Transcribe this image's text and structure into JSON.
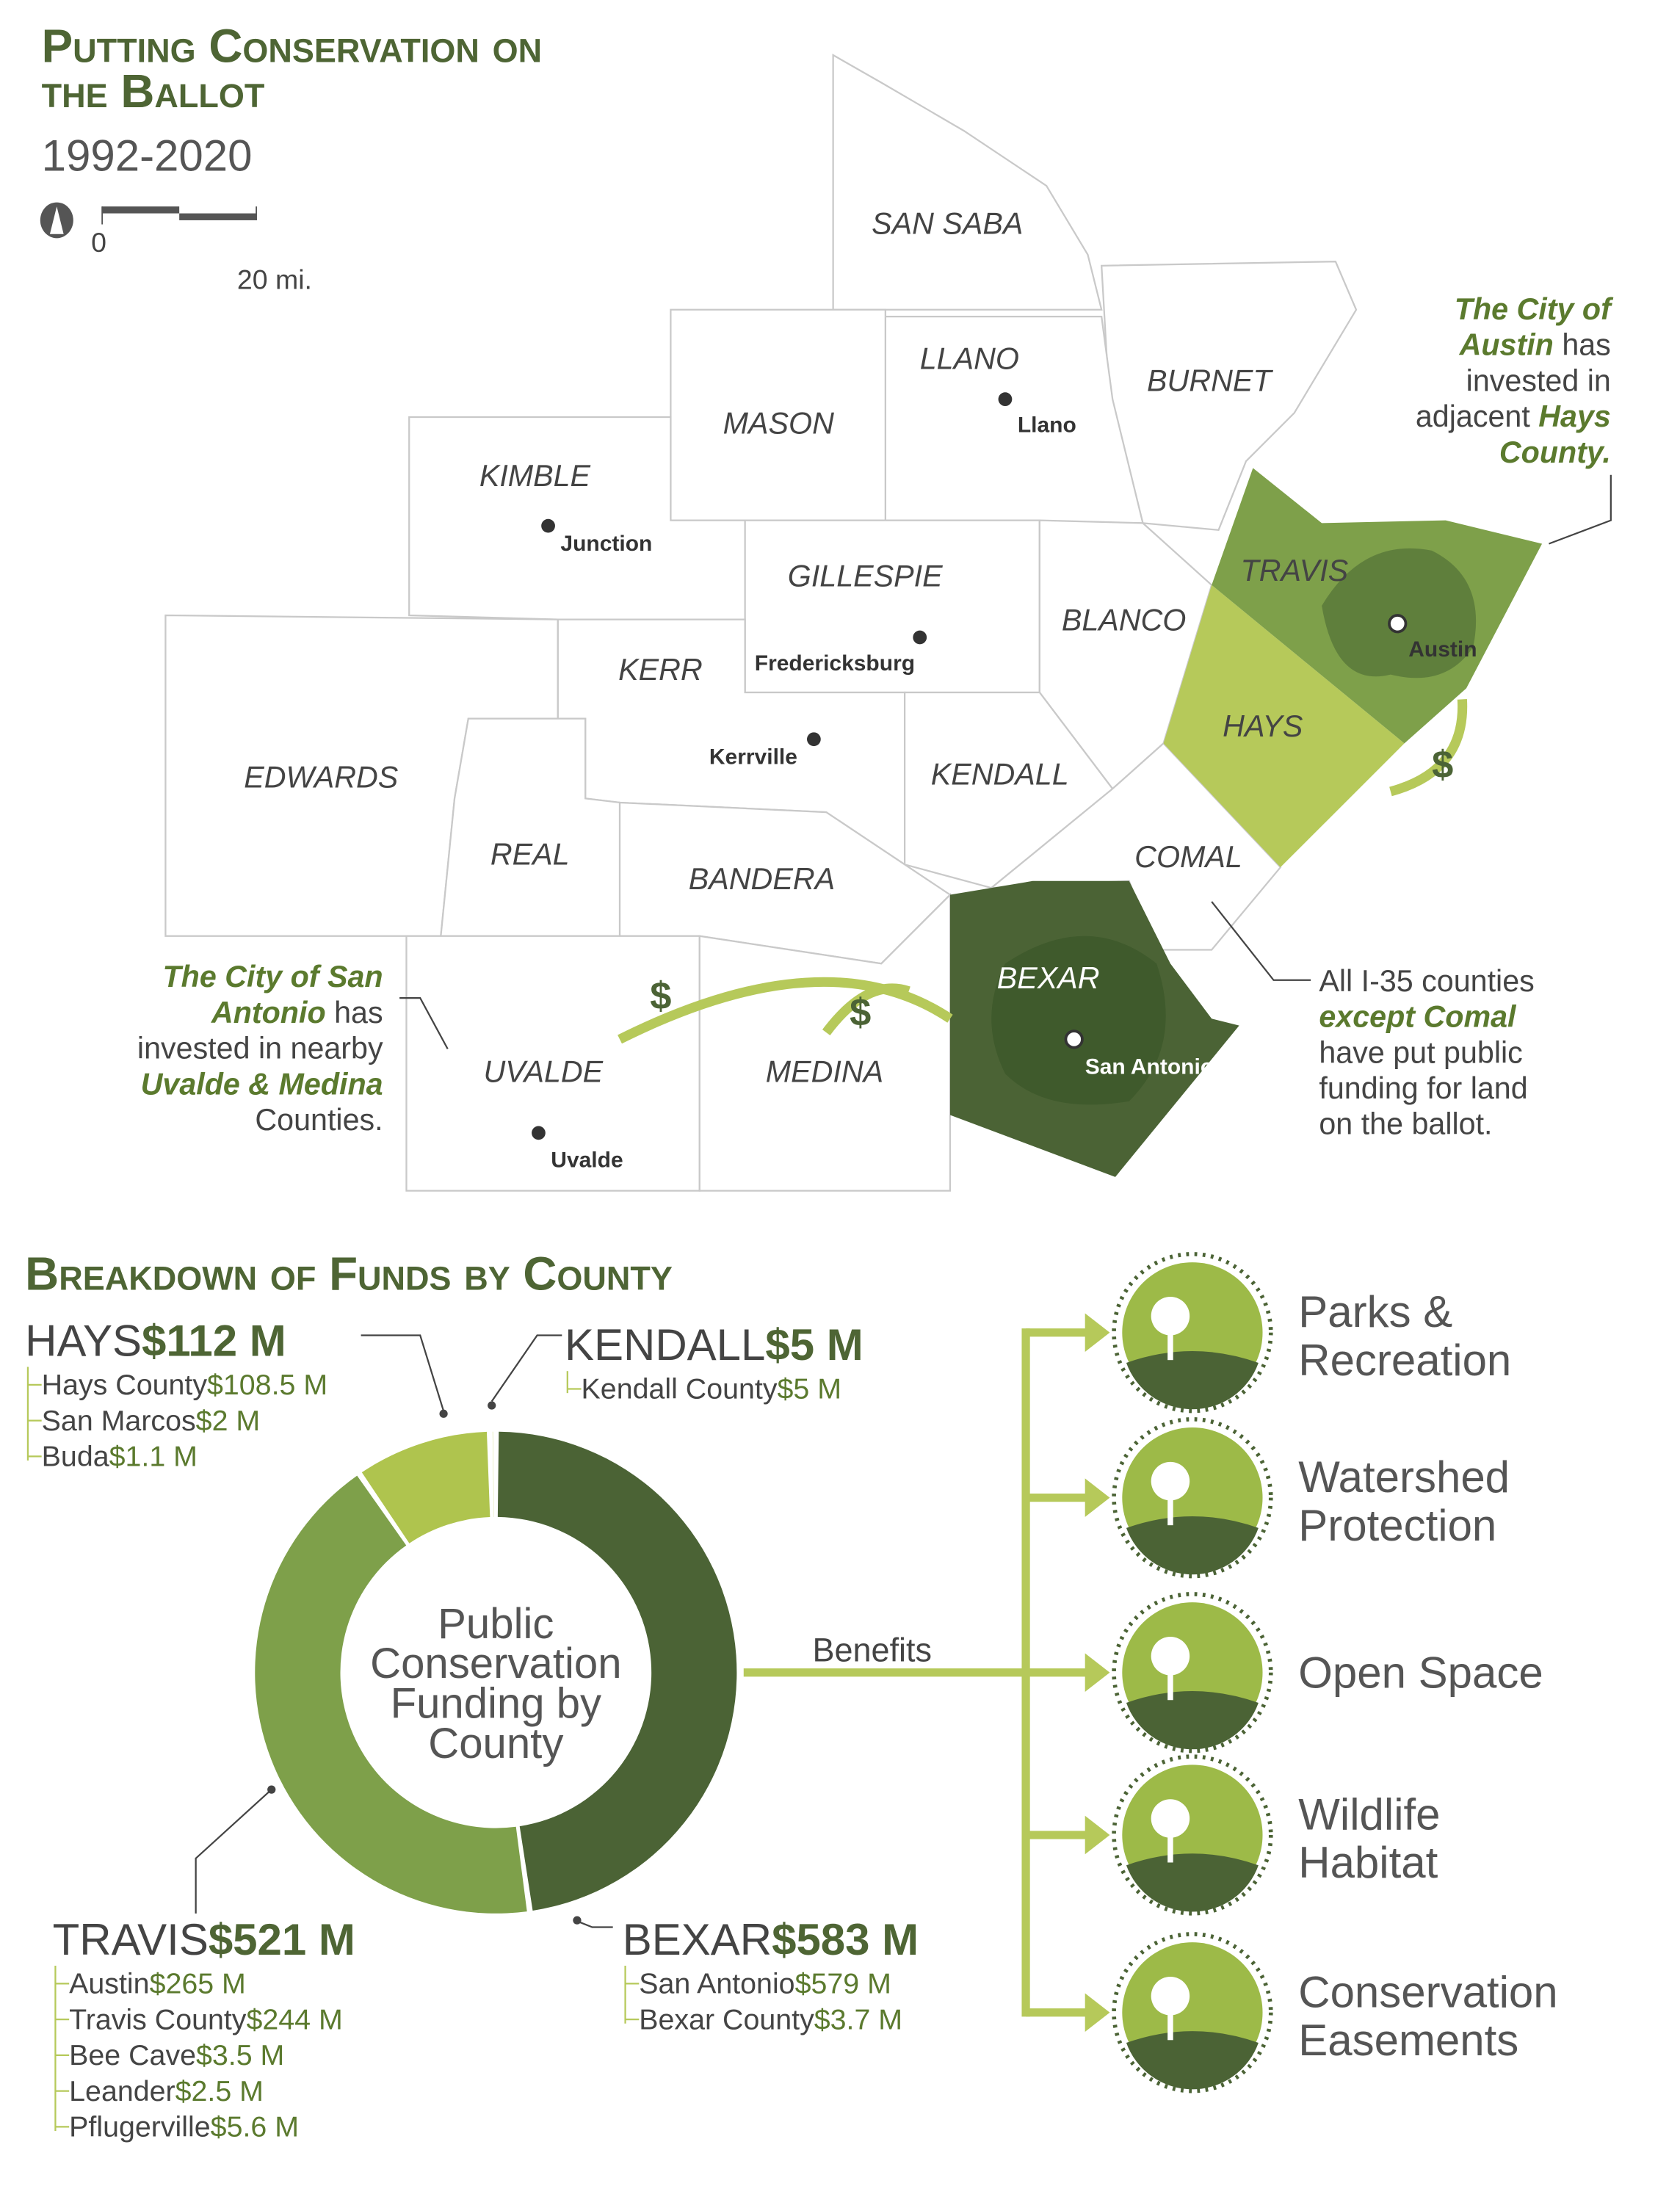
{
  "title": {
    "line1": "Putting Conservation on",
    "line2": "the Ballot",
    "years": "1992-2020"
  },
  "scale": {
    "zero": "0",
    "distance": "20 mi."
  },
  "counties": [
    "SAN SABA",
    "LLANO",
    "BURNET",
    "MASON",
    "KIMBLE",
    "GILLESPIE",
    "BLANCO",
    "TRAVIS",
    "KERR",
    "KENDALL",
    "HAYS",
    "EDWARDS",
    "REAL",
    "BANDERA",
    "COMAL",
    "BEXAR",
    "UVALDE",
    "MEDINA"
  ],
  "cities": [
    "Llano",
    "Junction",
    "Fredericksburg",
    "Kerrville",
    "Austin",
    "San Antonio",
    "Uvalde"
  ],
  "notes": {
    "austin": [
      "The City of",
      "Austin",
      " has",
      "invested in",
      "adjacent ",
      "Hays",
      "County."
    ],
    "san_antonio": [
      "The City of San",
      "Antonio",
      " has",
      "invested in nearby",
      "Uvalde & Medina",
      "Counties."
    ],
    "i35": [
      "All I-35 counties",
      "except Comal",
      "have put public",
      "funding for land",
      "on the ballot."
    ]
  },
  "breakdown_title": "Breakdown of Funds by County",
  "donut_center": [
    "Public",
    "Conservation",
    "Funding by",
    "County"
  ],
  "chart_data": {
    "type": "pie",
    "title": "Public Conservation Funding by County",
    "categories": [
      "Bexar",
      "Travis",
      "Hays",
      "Kendall"
    ],
    "values": [
      583,
      521,
      112,
      5
    ],
    "colors": [
      "#4b6335",
      "#7ea04a",
      "#afc44e",
      "#d8e29a"
    ]
  },
  "groups": {
    "hays": {
      "name": "HAYS",
      "total": "$112 M",
      "items": [
        [
          "Hays County",
          "$108.5 M"
        ],
        [
          "San Marcos",
          "$2 M"
        ],
        [
          "Buda",
          "$1.1 M"
        ]
      ]
    },
    "kendall": {
      "name": "KENDALL",
      "total": "$5 M",
      "items": [
        [
          "Kendall County",
          "$5 M"
        ]
      ]
    },
    "travis": {
      "name": "TRAVIS",
      "total": "$521 M",
      "items": [
        [
          "Austin",
          "$265 M"
        ],
        [
          "Travis County",
          "$244 M"
        ],
        [
          "Bee Cave",
          "$3.5 M"
        ],
        [
          "Leander",
          "$2.5 M"
        ],
        [
          "Pflugerville",
          "$5.6 M"
        ]
      ]
    },
    "bexar": {
      "name": "BEXAR",
      "total": "$583 M",
      "items": [
        [
          "San Antonio",
          "$579 M"
        ],
        [
          "Bexar County",
          "$3.7 M"
        ]
      ]
    }
  },
  "benefits_label": "Benefits",
  "benefits": [
    {
      "icon": "park-bench-icon",
      "lines": [
        "Parks &",
        "Recreation"
      ]
    },
    {
      "icon": "river-icon",
      "lines": [
        "Watershed",
        "Protection"
      ]
    },
    {
      "icon": "hikers-icon",
      "lines": [
        "Open Space"
      ]
    },
    {
      "icon": "deer-icon",
      "lines": [
        "Wildlife",
        "Habitat"
      ]
    },
    {
      "icon": "handshake-icon",
      "lines": [
        "Conservation",
        "Easements"
      ]
    }
  ],
  "colors": {
    "dark": "#4b6335",
    "mid": "#7ea04a",
    "light": "#b6c95a",
    "pale": "#e5edc6",
    "title": "#4e6534"
  }
}
